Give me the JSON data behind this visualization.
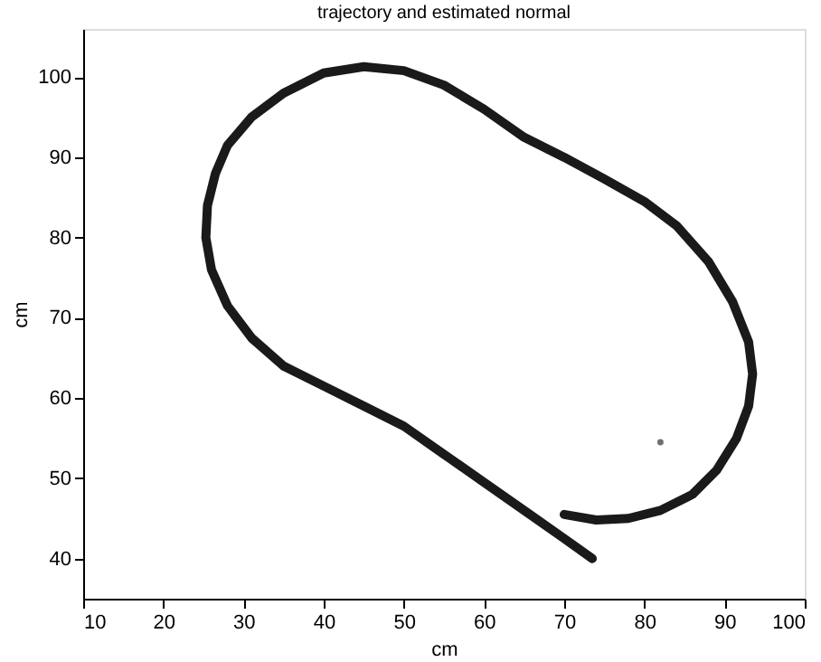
{
  "chart_data": {
    "type": "line",
    "title": "trajectory and estimated normal",
    "xlabel": "cm",
    "ylabel": "cm",
    "xlim": [
      10,
      100
    ],
    "xticks": [
      10,
      20,
      30,
      40,
      50,
      60,
      70,
      80,
      90,
      100
    ],
    "ylim": [
      35,
      106
    ],
    "yticks": [
      40,
      50,
      60,
      70,
      80,
      90,
      100
    ],
    "grid": false,
    "marker": "none",
    "line_style": "solid",
    "series": [
      {
        "color": "#1a1a1a",
        "x": [
          73.5,
          70,
          65,
          60,
          55,
          50,
          45,
          40,
          35,
          31,
          28,
          26,
          25.3,
          25.5,
          26.5,
          28,
          31,
          35,
          40,
          45,
          50,
          55,
          60,
          65,
          70,
          75,
          80,
          84,
          88,
          91,
          93,
          93.5,
          93,
          91.5,
          89,
          86,
          82,
          78,
          74,
          70
        ],
        "values": [
          40,
          42.5,
          46,
          49.5,
          53,
          56.5,
          59,
          61.5,
          64,
          67.5,
          71.5,
          76,
          80,
          84,
          88,
          91.5,
          95,
          98,
          100.5,
          101.3,
          100.8,
          99,
          96,
          92.5,
          90,
          87.3,
          84.5,
          81.5,
          77,
          72,
          67,
          63,
          59,
          55,
          51,
          48,
          46,
          45,
          44.8,
          45.5
        ]
      },
      {
        "type": "scatter",
        "color": "#333333",
        "x": [
          82
        ],
        "values": [
          54.5
        ]
      }
    ]
  }
}
